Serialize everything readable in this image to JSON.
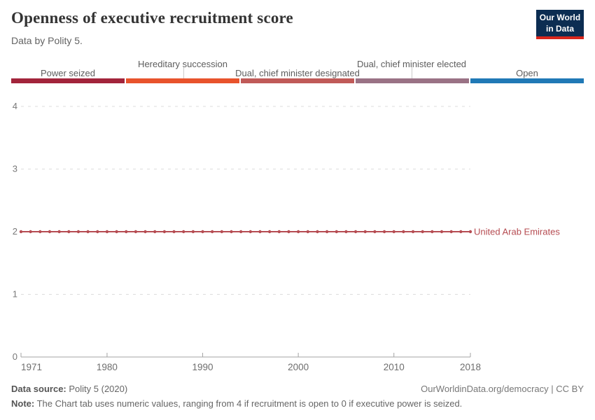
{
  "header": {
    "title": "Openness of executive recruitment score",
    "subtitle": "Data by Polity 5.",
    "logo": {
      "line1": "Our World",
      "line2": "in Data",
      "bg": "#0c2d52",
      "accent": "#d8261c"
    }
  },
  "legend": {
    "items": [
      {
        "label": "Power seized",
        "color": "#a2243b"
      },
      {
        "label": "Hereditary succession",
        "color": "#e8532c"
      },
      {
        "label": "Dual, chief minister designated",
        "color": "#c05a58"
      },
      {
        "label": "Dual, chief minister elected",
        "color": "#9a7285"
      },
      {
        "label": "Open",
        "color": "#2079b6"
      }
    ]
  },
  "chart_data": {
    "type": "line",
    "title": "Openness of executive recruitment score",
    "xlabel": "",
    "ylabel": "",
    "xlim": [
      1971,
      2018
    ],
    "ylim": [
      0,
      4
    ],
    "xticks": [
      1971,
      1980,
      1990,
      2000,
      2010,
      2018
    ],
    "yticks": [
      0,
      1,
      2,
      3,
      4
    ],
    "grid": "horizontal-dashed",
    "value_scale": [
      "Power seized",
      "Hereditary succession",
      "Dual, chief minister designated",
      "Dual, chief minister elected",
      "Open"
    ],
    "series": [
      {
        "name": "United Arab Emirates",
        "color": "#b64c52",
        "x": [
          1971,
          1972,
          1973,
          1974,
          1975,
          1976,
          1977,
          1978,
          1979,
          1980,
          1981,
          1982,
          1983,
          1984,
          1985,
          1986,
          1987,
          1988,
          1989,
          1990,
          1991,
          1992,
          1993,
          1994,
          1995,
          1996,
          1997,
          1998,
          1999,
          2000,
          2001,
          2002,
          2003,
          2004,
          2005,
          2006,
          2007,
          2008,
          2009,
          2010,
          2011,
          2012,
          2013,
          2014,
          2015,
          2016,
          2017,
          2018
        ],
        "values": [
          2,
          2,
          2,
          2,
          2,
          2,
          2,
          2,
          2,
          2,
          2,
          2,
          2,
          2,
          2,
          2,
          2,
          2,
          2,
          2,
          2,
          2,
          2,
          2,
          2,
          2,
          2,
          2,
          2,
          2,
          2,
          2,
          2,
          2,
          2,
          2,
          2,
          2,
          2,
          2,
          2,
          2,
          2,
          2,
          2,
          2,
          2,
          2
        ]
      }
    ]
  },
  "footer": {
    "source_label": "Data source:",
    "source_value": "Polity 5 (2020)",
    "link": "OurWorldinData.org/democracy | CC BY",
    "note_label": "Note:",
    "note_text": "The Chart tab uses numeric values, ranging from 4 if recruitment is open to 0 if executive power is seized."
  }
}
